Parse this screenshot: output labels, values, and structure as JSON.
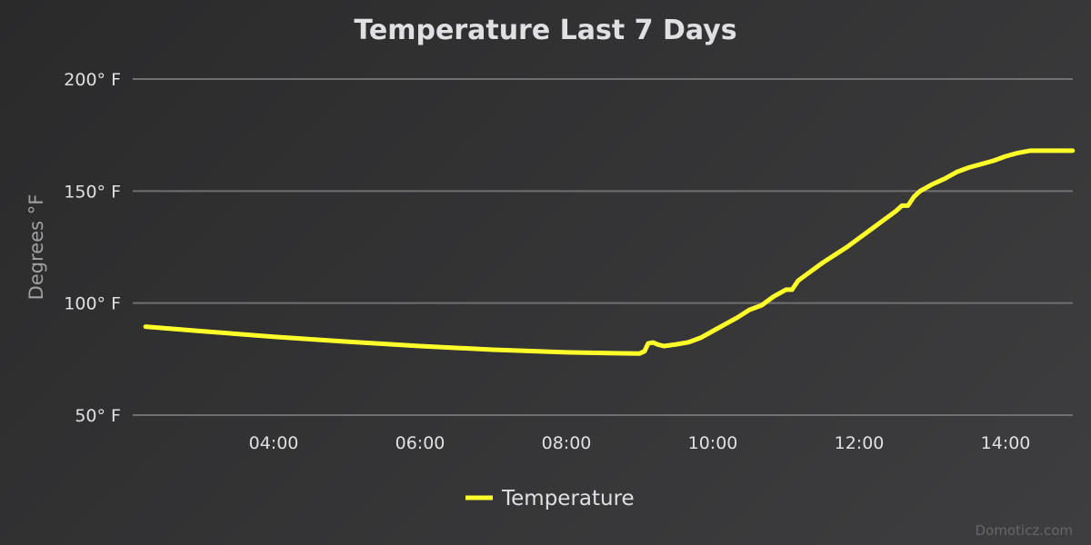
{
  "chart_data": {
    "type": "line",
    "title": "Temperature Last 7 Days",
    "ylabel": "Degrees °F",
    "ylim": [
      50,
      200
    ],
    "yticks": [
      50,
      100,
      150,
      200
    ],
    "ytick_suffix": "° F",
    "xlim": [
      "02:15",
      "14:55"
    ],
    "xticks": [
      "04:00",
      "06:00",
      "08:00",
      "10:00",
      "12:00",
      "14:00"
    ],
    "grid": true,
    "legend_position": "bottom-center",
    "series": [
      {
        "name": "Temperature",
        "color": "#ffff29",
        "points": [
          [
            "02:15",
            89.5
          ],
          [
            "03:00",
            87.5
          ],
          [
            "04:00",
            85.0
          ],
          [
            "05:00",
            82.8
          ],
          [
            "06:00",
            80.8
          ],
          [
            "07:00",
            79.2
          ],
          [
            "08:00",
            78.0
          ],
          [
            "08:40",
            77.6
          ],
          [
            "09:00",
            77.5
          ],
          [
            "09:04",
            78.5
          ],
          [
            "09:07",
            82.0
          ],
          [
            "09:11",
            82.4
          ],
          [
            "09:15",
            81.5
          ],
          [
            "09:20",
            80.8
          ],
          [
            "09:30",
            81.6
          ],
          [
            "09:40",
            82.5
          ],
          [
            "09:50",
            84.5
          ],
          [
            "10:00",
            87.5
          ],
          [
            "10:10",
            90.5
          ],
          [
            "10:20",
            93.5
          ],
          [
            "10:30",
            97.0
          ],
          [
            "10:40",
            99.0
          ],
          [
            "10:50",
            103.0
          ],
          [
            "11:00",
            106.0
          ],
          [
            "11:05",
            106.0
          ],
          [
            "11:10",
            110.0
          ],
          [
            "11:20",
            114.0
          ],
          [
            "11:30",
            118.0
          ],
          [
            "11:40",
            121.5
          ],
          [
            "11:50",
            125.0
          ],
          [
            "12:00",
            129.0
          ],
          [
            "12:10",
            133.0
          ],
          [
            "12:20",
            137.0
          ],
          [
            "12:30",
            141.0
          ],
          [
            "12:35",
            143.5
          ],
          [
            "12:40",
            143.5
          ],
          [
            "12:45",
            147.5
          ],
          [
            "12:50",
            150.0
          ],
          [
            "13:00",
            153.0
          ],
          [
            "13:10",
            155.5
          ],
          [
            "13:20",
            158.5
          ],
          [
            "13:30",
            160.5
          ],
          [
            "13:40",
            162.0
          ],
          [
            "13:50",
            163.5
          ],
          [
            "14:00",
            165.5
          ],
          [
            "14:10",
            167.0
          ],
          [
            "14:20",
            168.0
          ],
          [
            "14:30",
            168.0
          ],
          [
            "14:55",
            168.0
          ]
        ]
      }
    ]
  },
  "credits": "Domoticz.com"
}
